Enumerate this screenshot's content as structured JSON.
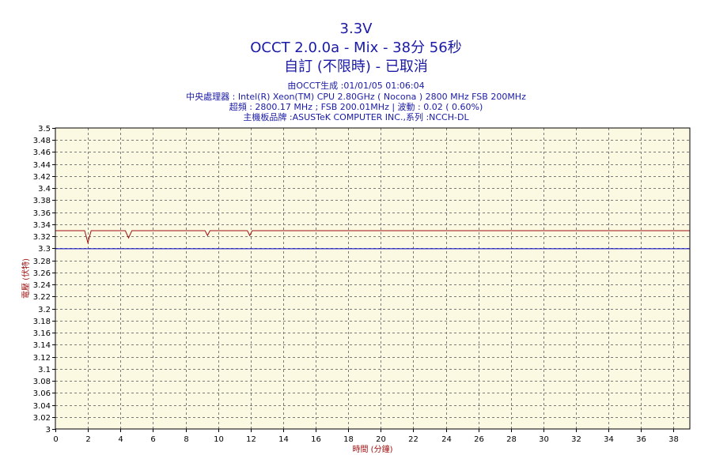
{
  "header": {
    "title": "3.3V",
    "subtitle": "OCCT 2.0.0a - Mix - 38分 56秒",
    "mode": "自訂 (不限時) - 已取消",
    "info": [
      "由OCCT生成 :01/01/05 01:06:04",
      "中央處理器 : Intel(R) Xeon(TM) CPU 2.80GHz ( Nocona ) 2800 MHz FSB 200MHz",
      "超頻 : 2800.17 MHz ; FSB 200.01MHz | 波動 : 0.02 ( 0.60%)",
      "主機板品牌 :ASUSTeK COMPUTER INC.,系列 :NCCH-DL"
    ]
  },
  "chart_data": {
    "type": "line",
    "title": "3.3V",
    "xlabel": "時間 (分鐘)",
    "ylabel": "電壓 (伏特)",
    "xlim": [
      0,
      39
    ],
    "ylim": [
      3.0,
      3.5
    ],
    "x_ticks": [
      "0",
      "2",
      "4",
      "6",
      "8",
      "10",
      "12",
      "14",
      "16",
      "18",
      "20",
      "22",
      "24",
      "26",
      "28",
      "30",
      "32",
      "34",
      "36",
      "38"
    ],
    "y_ticks": [
      "3",
      "3.02",
      "3.04",
      "3.06",
      "3.08",
      "3.1",
      "3.12",
      "3.14",
      "3.16",
      "3.18",
      "3.2",
      "3.22",
      "3.24",
      "3.26",
      "3.28",
      "3.3",
      "3.32",
      "3.34",
      "3.36",
      "3.38",
      "3.4",
      "3.42",
      "3.44",
      "3.46",
      "3.48",
      "3.5"
    ],
    "grid": true,
    "background": "#fcf9e3",
    "series": [
      {
        "color": "#a01010",
        "x": [
          0,
          1.8,
          2.0,
          2.2,
          4.3,
          4.5,
          4.7,
          9.2,
          9.35,
          9.5,
          11.8,
          11.95,
          12.1,
          39
        ],
        "y": [
          3.33,
          3.33,
          3.31,
          3.33,
          3.33,
          3.318,
          3.33,
          3.33,
          3.322,
          3.33,
          3.33,
          3.322,
          3.33,
          3.33
        ]
      },
      {
        "color": "#0000cc",
        "x": [
          0,
          39
        ],
        "y": [
          3.3,
          3.3
        ]
      }
    ]
  }
}
